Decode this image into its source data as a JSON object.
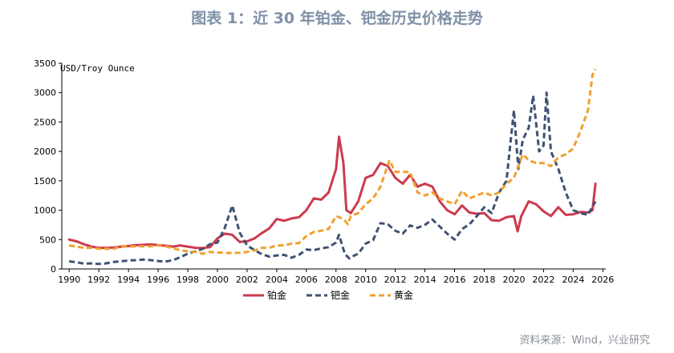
{
  "title": "图表 1：近 30 年铂金、钯金历史价格走势",
  "source": "资料来源：Wind，兴业研究",
  "chart_data": {
    "type": "line",
    "title": "图表 1：近 30 年铂金、钯金历史价格走势",
    "ylabel": "USD/Troy Ounce",
    "xlabel": "",
    "xlim": [
      1989.5,
      2026.2
    ],
    "ylim": [
      0,
      3500
    ],
    "x_ticks": [
      1990,
      1992,
      1994,
      1996,
      1998,
      2000,
      2002,
      2004,
      2006,
      2008,
      2010,
      2012,
      2014,
      2016,
      2018,
      2020,
      2022,
      2024,
      2026
    ],
    "x_tick_labels": [
      "1990",
      "1992",
      "1994",
      "1996",
      "1998",
      "2000",
      "2002",
      "2004",
      "2006",
      "2008",
      "2010",
      "2012",
      "2014",
      "2016",
      "2018",
      "2020",
      "2022",
      "2024",
      "2026"
    ],
    "y_ticks": [
      0,
      500,
      1000,
      1500,
      2000,
      2500,
      3000,
      3500
    ],
    "y_tick_labels": [
      "0",
      "500",
      "1000",
      "1500",
      "2000",
      "2500",
      "3000",
      "3500"
    ],
    "legend": [
      "铂金",
      "钯金",
      "黄金"
    ],
    "series": [
      {
        "name": "铂金",
        "color": "#cc3b4d",
        "dash": "solid",
        "points": [
          [
            1990,
            500
          ],
          [
            1990.5,
            470
          ],
          [
            1991,
            420
          ],
          [
            1991.5,
            380
          ],
          [
            1992,
            360
          ],
          [
            1992.5,
            360
          ],
          [
            1993,
            365
          ],
          [
            1993.5,
            380
          ],
          [
            1994,
            390
          ],
          [
            1994.5,
            405
          ],
          [
            1995,
            410
          ],
          [
            1995.5,
            420
          ],
          [
            1996,
            405
          ],
          [
            1996.5,
            395
          ],
          [
            1997,
            380
          ],
          [
            1997.5,
            400
          ],
          [
            1998,
            380
          ],
          [
            1998.5,
            360
          ],
          [
            1999,
            355
          ],
          [
            1999.5,
            370
          ],
          [
            2000,
            520
          ],
          [
            2000.5,
            600
          ],
          [
            2001,
            580
          ],
          [
            2001.5,
            460
          ],
          [
            2002,
            470
          ],
          [
            2002.5,
            520
          ],
          [
            2003,
            610
          ],
          [
            2003.5,
            690
          ],
          [
            2004,
            850
          ],
          [
            2004.5,
            820
          ],
          [
            2005,
            860
          ],
          [
            2005.5,
            880
          ],
          [
            2006,
            1000
          ],
          [
            2006.5,
            1200
          ],
          [
            2007,
            1180
          ],
          [
            2007.5,
            1300
          ],
          [
            2008,
            1700
          ],
          [
            2008.2,
            2250
          ],
          [
            2008.5,
            1800
          ],
          [
            2008.7,
            1000
          ],
          [
            2009,
            950
          ],
          [
            2009.5,
            1150
          ],
          [
            2010,
            1550
          ],
          [
            2010.5,
            1600
          ],
          [
            2011,
            1800
          ],
          [
            2011.5,
            1750
          ],
          [
            2012,
            1550
          ],
          [
            2012.5,
            1450
          ],
          [
            2013,
            1600
          ],
          [
            2013.5,
            1400
          ],
          [
            2014,
            1450
          ],
          [
            2014.5,
            1400
          ],
          [
            2015,
            1150
          ],
          [
            2015.5,
            1000
          ],
          [
            2016,
            930
          ],
          [
            2016.5,
            1080
          ],
          [
            2017,
            960
          ],
          [
            2017.5,
            940
          ],
          [
            2018,
            950
          ],
          [
            2018.5,
            830
          ],
          [
            2019,
            820
          ],
          [
            2019.5,
            880
          ],
          [
            2020,
            900
          ],
          [
            2020.25,
            640
          ],
          [
            2020.5,
            900
          ],
          [
            2021,
            1150
          ],
          [
            2021.5,
            1100
          ],
          [
            2022,
            980
          ],
          [
            2022.5,
            900
          ],
          [
            2023,
            1050
          ],
          [
            2023.5,
            920
          ],
          [
            2024,
            930
          ],
          [
            2024.5,
            970
          ],
          [
            2025,
            960
          ],
          [
            2025.3,
            1000
          ],
          [
            2025.5,
            1450
          ]
        ]
      },
      {
        "name": "钯金",
        "color": "#3f5272",
        "dash": "dashed",
        "points": [
          [
            1990,
            130
          ],
          [
            1990.5,
            115
          ],
          [
            1991,
            90
          ],
          [
            1991.5,
            95
          ],
          [
            1992,
            85
          ],
          [
            1992.5,
            95
          ],
          [
            1993,
            120
          ],
          [
            1993.5,
            130
          ],
          [
            1994,
            145
          ],
          [
            1994.5,
            150
          ],
          [
            1995,
            160
          ],
          [
            1995.5,
            150
          ],
          [
            1996,
            135
          ],
          [
            1996.5,
            125
          ],
          [
            1997,
            150
          ],
          [
            1997.5,
            200
          ],
          [
            1998,
            260
          ],
          [
            1998.5,
            300
          ],
          [
            1999,
            340
          ],
          [
            1999.5,
            420
          ],
          [
            2000,
            450
          ],
          [
            2000.5,
            700
          ],
          [
            2001,
            1080
          ],
          [
            2001.5,
            620
          ],
          [
            2002,
            400
          ],
          [
            2002.5,
            320
          ],
          [
            2003,
            250
          ],
          [
            2003.5,
            210
          ],
          [
            2004,
            230
          ],
          [
            2004.5,
            240
          ],
          [
            2005,
            190
          ],
          [
            2005.5,
            240
          ],
          [
            2006,
            330
          ],
          [
            2006.5,
            320
          ],
          [
            2007,
            350
          ],
          [
            2007.5,
            370
          ],
          [
            2008,
            450
          ],
          [
            2008.2,
            580
          ],
          [
            2008.6,
            250
          ],
          [
            2008.9,
            180
          ],
          [
            2009,
            200
          ],
          [
            2009.5,
            260
          ],
          [
            2010,
            430
          ],
          [
            2010.5,
            490
          ],
          [
            2011,
            780
          ],
          [
            2011.5,
            760
          ],
          [
            2012,
            650
          ],
          [
            2012.5,
            600
          ],
          [
            2013,
            740
          ],
          [
            2013.5,
            700
          ],
          [
            2014,
            750
          ],
          [
            2014.5,
            840
          ],
          [
            2015,
            720
          ],
          [
            2015.5,
            600
          ],
          [
            2016,
            500
          ],
          [
            2016.5,
            680
          ],
          [
            2017,
            760
          ],
          [
            2017.5,
            900
          ],
          [
            2018,
            1050
          ],
          [
            2018.5,
            950
          ],
          [
            2019,
            1300
          ],
          [
            2019.5,
            1500
          ],
          [
            2020,
            2700
          ],
          [
            2020.3,
            1700
          ],
          [
            2020.6,
            2200
          ],
          [
            2021,
            2400
          ],
          [
            2021.3,
            2950
          ],
          [
            2021.7,
            2000
          ],
          [
            2022,
            2100
          ],
          [
            2022.2,
            3000
          ],
          [
            2022.5,
            2000
          ],
          [
            2023,
            1700
          ],
          [
            2023.5,
            1300
          ],
          [
            2024,
            1000
          ],
          [
            2024.5,
            950
          ],
          [
            2025,
            920
          ],
          [
            2025.5,
            1150
          ]
        ]
      },
      {
        "name": "黄金",
        "color": "#f0a02f",
        "dash": "dashed",
        "points": [
          [
            1990,
            400
          ],
          [
            1990.5,
            380
          ],
          [
            1991,
            360
          ],
          [
            1991.5,
            360
          ],
          [
            1992,
            345
          ],
          [
            1992.5,
            345
          ],
          [
            1993,
            340
          ],
          [
            1993.5,
            390
          ],
          [
            1994,
            380
          ],
          [
            1994.5,
            385
          ],
          [
            1995,
            385
          ],
          [
            1995.5,
            385
          ],
          [
            1996,
            400
          ],
          [
            1996.5,
            385
          ],
          [
            1997,
            350
          ],
          [
            1997.5,
            320
          ],
          [
            1998,
            300
          ],
          [
            1998.5,
            290
          ],
          [
            1999,
            260
          ],
          [
            1999.5,
            290
          ],
          [
            2000,
            280
          ],
          [
            2000.5,
            275
          ],
          [
            2001,
            270
          ],
          [
            2001.5,
            275
          ],
          [
            2002,
            290
          ],
          [
            2002.5,
            315
          ],
          [
            2003,
            360
          ],
          [
            2003.5,
            360
          ],
          [
            2004,
            400
          ],
          [
            2004.5,
            400
          ],
          [
            2005,
            430
          ],
          [
            2005.5,
            440
          ],
          [
            2006,
            560
          ],
          [
            2006.5,
            630
          ],
          [
            2007,
            650
          ],
          [
            2007.5,
            680
          ],
          [
            2008,
            900
          ],
          [
            2008.5,
            850
          ],
          [
            2008.8,
            760
          ],
          [
            2009,
            900
          ],
          [
            2009.5,
            950
          ],
          [
            2010,
            1100
          ],
          [
            2010.5,
            1200
          ],
          [
            2011,
            1400
          ],
          [
            2011.6,
            1850
          ],
          [
            2012,
            1650
          ],
          [
            2012.5,
            1650
          ],
          [
            2013,
            1650
          ],
          [
            2013.5,
            1300
          ],
          [
            2014,
            1250
          ],
          [
            2014.5,
            1300
          ],
          [
            2015,
            1200
          ],
          [
            2015.5,
            1150
          ],
          [
            2016,
            1100
          ],
          [
            2016.5,
            1330
          ],
          [
            2017,
            1200
          ],
          [
            2017.5,
            1250
          ],
          [
            2018,
            1300
          ],
          [
            2018.5,
            1250
          ],
          [
            2019,
            1300
          ],
          [
            2019.5,
            1450
          ],
          [
            2020,
            1550
          ],
          [
            2020.6,
            1950
          ],
          [
            2021,
            1850
          ],
          [
            2021.5,
            1800
          ],
          [
            2022,
            1800
          ],
          [
            2022.5,
            1750
          ],
          [
            2023,
            1900
          ],
          [
            2023.5,
            1950
          ],
          [
            2024,
            2050
          ],
          [
            2024.5,
            2350
          ],
          [
            2025,
            2700
          ],
          [
            2025.3,
            3300
          ],
          [
            2025.5,
            3400
          ]
        ]
      }
    ]
  }
}
